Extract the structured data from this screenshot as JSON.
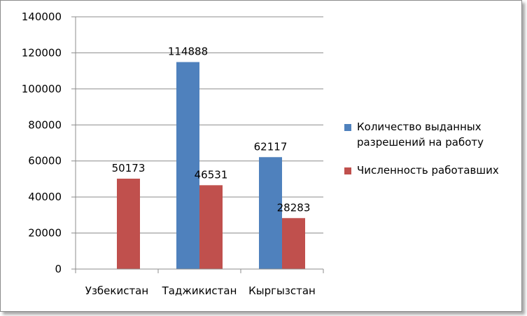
{
  "chart_data": {
    "type": "bar",
    "categories": [
      "Узбекистан",
      "Таджикистан",
      "Кыргызстан"
    ],
    "series": [
      {
        "name": "Количество выданных разрешений на работу",
        "values": [
          null,
          114888,
          62117
        ],
        "color": "#4f81bd"
      },
      {
        "name": "Численность работавших",
        "values": [
          50173,
          46531,
          28283
        ],
        "color": "#c0504d"
      }
    ],
    "ylim": [
      0,
      140000
    ],
    "yticks": [
      0,
      20000,
      40000,
      60000,
      80000,
      100000,
      120000,
      140000
    ],
    "grid": true,
    "legend_position": "right"
  }
}
